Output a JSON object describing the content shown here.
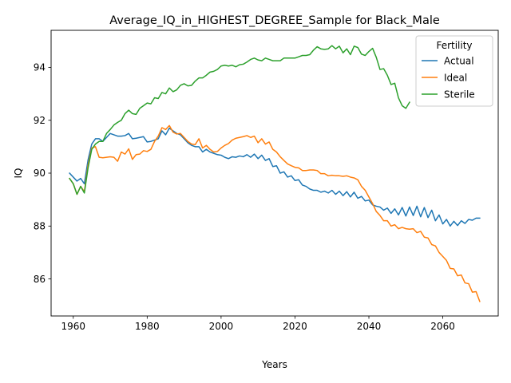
{
  "chart_data": {
    "type": "line",
    "title": "Average_IQ_in_HIGHEST_DEGREE_Sample for Black_Male",
    "xlabel": "Years",
    "ylabel": "IQ",
    "xlim": [
      1954,
      2075
    ],
    "ylim": [
      84.6,
      95.4
    ],
    "xticks": [
      1960,
      1980,
      2000,
      2020,
      2040,
      2060
    ],
    "yticks": [
      86,
      88,
      90,
      92,
      94
    ],
    "grid": false,
    "legend": {
      "title": "Fertility",
      "placement": "top-right"
    },
    "series": [
      {
        "name": "Actual",
        "color": "#1f77b4",
        "x": [
          1959,
          1961,
          1962,
          1963,
          1964,
          1965,
          1966,
          1967,
          1968,
          1969,
          1970,
          1971,
          1972,
          1973,
          1974,
          1975,
          1976,
          1977,
          1978,
          1979,
          1980,
          1981,
          1982,
          1983,
          1984,
          1985,
          1986,
          1987,
          1988,
          1989,
          1990,
          1991,
          1992,
          1993,
          1994,
          1995,
          1996,
          1997,
          1998,
          1999,
          2000,
          2001,
          2002,
          2003,
          2004,
          2005,
          2006,
          2007,
          2008,
          2009,
          2010,
          2011,
          2012,
          2013,
          2014,
          2015,
          2016,
          2017,
          2018,
          2019,
          2020,
          2021,
          2022,
          2023,
          2024,
          2025,
          2026,
          2027,
          2028,
          2029,
          2030,
          2031,
          2032,
          2033,
          2034,
          2035,
          2036,
          2037,
          2038,
          2039,
          2040,
          2041,
          2042,
          2043,
          2044,
          2045,
          2046,
          2047,
          2048,
          2049,
          2050,
          2051,
          2052,
          2053,
          2054,
          2055,
          2056,
          2057,
          2058,
          2059,
          2060,
          2061,
          2062,
          2063,
          2064,
          2065,
          2066,
          2067,
          2068,
          2069,
          2070
        ],
        "values": [
          90.0,
          89.7,
          89.8,
          89.6,
          90.5,
          91.1,
          91.3,
          91.3,
          91.2,
          91.35,
          91.5,
          91.45,
          91.4,
          91.4,
          91.42,
          91.5,
          91.3,
          91.32,
          91.35,
          91.38,
          91.18,
          91.2,
          91.25,
          91.3,
          91.6,
          91.45,
          91.7,
          91.6,
          91.5,
          91.45,
          91.3,
          91.15,
          91.05,
          91.0,
          91.0,
          90.8,
          90.9,
          90.8,
          90.75,
          90.7,
          90.68,
          90.6,
          90.55,
          90.62,
          90.6,
          90.65,
          90.62,
          90.7,
          90.6,
          90.72,
          90.55,
          90.68,
          90.48,
          90.55,
          90.25,
          90.28,
          90.0,
          90.05,
          89.85,
          89.9,
          89.72,
          89.75,
          89.55,
          89.5,
          89.4,
          89.35,
          89.35,
          89.28,
          89.32,
          89.25,
          89.35,
          89.2,
          89.32,
          89.15,
          89.3,
          89.1,
          89.28,
          89.05,
          89.12,
          88.95,
          88.98,
          88.8,
          88.75,
          88.72,
          88.6,
          88.68,
          88.48,
          88.65,
          88.42,
          88.7,
          88.38,
          88.72,
          88.4,
          88.75,
          88.35,
          88.7,
          88.32,
          88.6,
          88.2,
          88.42,
          88.08,
          88.25,
          88.0,
          88.18,
          88.02,
          88.2,
          88.1,
          88.25,
          88.22,
          88.3,
          88.3
        ]
      },
      {
        "name": "Ideal",
        "color": "#ff7f0e",
        "x": [
          1959,
          1960,
          1961,
          1962,
          1963,
          1964,
          1965,
          1966,
          1967,
          1968,
          1969,
          1970,
          1971,
          1972,
          1973,
          1974,
          1975,
          1976,
          1977,
          1978,
          1979,
          1980,
          1981,
          1982,
          1983,
          1984,
          1985,
          1986,
          1987,
          1988,
          1989,
          1990,
          1991,
          1992,
          1993,
          1994,
          1995,
          1996,
          1997,
          1998,
          1999,
          2000,
          2001,
          2002,
          2003,
          2004,
          2005,
          2006,
          2007,
          2008,
          2009,
          2010,
          2011,
          2012,
          2013,
          2014,
          2015,
          2016,
          2017,
          2018,
          2019,
          2020,
          2021,
          2022,
          2023,
          2024,
          2025,
          2026,
          2027,
          2028,
          2029,
          2030,
          2031,
          2032,
          2033,
          2034,
          2035,
          2036,
          2037,
          2038,
          2039,
          2040,
          2041,
          2042,
          2043,
          2044,
          2045,
          2046,
          2047,
          2048,
          2049,
          2050,
          2051,
          2052,
          2053,
          2054,
          2055,
          2056,
          2057,
          2058,
          2059,
          2060,
          2061,
          2062,
          2063,
          2064,
          2065,
          2066,
          2067,
          2068,
          2069,
          2070
        ],
        "values": [
          89.8,
          89.6,
          89.2,
          89.5,
          89.3,
          90.3,
          90.95,
          91.0,
          90.6,
          90.58,
          90.6,
          90.62,
          90.6,
          90.45,
          90.8,
          90.72,
          90.92,
          90.52,
          90.7,
          90.72,
          90.85,
          90.82,
          90.9,
          91.2,
          91.4,
          91.72,
          91.65,
          91.8,
          91.55,
          91.48,
          91.5,
          91.35,
          91.2,
          91.1,
          91.08,
          91.3,
          90.95,
          91.05,
          90.9,
          90.8,
          90.82,
          90.95,
          91.05,
          91.12,
          91.25,
          91.32,
          91.35,
          91.38,
          91.42,
          91.35,
          91.4,
          91.15,
          91.3,
          91.1,
          91.18,
          90.9,
          90.8,
          90.62,
          90.48,
          90.35,
          90.28,
          90.22,
          90.2,
          90.1,
          90.1,
          90.12,
          90.12,
          90.1,
          89.98,
          89.98,
          89.9,
          89.92,
          89.9,
          89.9,
          89.88,
          89.9,
          89.85,
          89.82,
          89.75,
          89.5,
          89.35,
          89.1,
          88.85,
          88.55,
          88.4,
          88.2,
          88.2,
          88.0,
          88.05,
          87.9,
          87.95,
          87.9,
          87.88,
          87.9,
          87.75,
          87.8,
          87.58,
          87.55,
          87.3,
          87.25,
          87.0,
          86.85,
          86.7,
          86.4,
          86.38,
          86.12,
          86.15,
          85.85,
          85.82,
          85.5,
          85.52,
          85.15
        ]
      },
      {
        "name": "Sterile",
        "color": "#2ca02c",
        "x": [
          1959,
          1960,
          1961,
          1962,
          1963,
          1964,
          1965,
          1966,
          1967,
          1968,
          1969,
          1970,
          1971,
          1972,
          1973,
          1974,
          1975,
          1976,
          1977,
          1978,
          1979,
          1980,
          1981,
          1982,
          1983,
          1984,
          1985,
          1986,
          1987,
          1988,
          1989,
          1990,
          1991,
          1992,
          1993,
          1994,
          1995,
          1996,
          1997,
          1998,
          1999,
          2000,
          2001,
          2002,
          2003,
          2004,
          2005,
          2006,
          2007,
          2008,
          2009,
          2010,
          2011,
          2012,
          2013,
          2014,
          2015,
          2016,
          2017,
          2018,
          2019,
          2020,
          2021,
          2022,
          2023,
          2024,
          2025,
          2026,
          2027,
          2028,
          2029,
          2030,
          2031,
          2032,
          2033,
          2034,
          2035,
          2036,
          2037,
          2038,
          2039,
          2040,
          2041,
          2042,
          2043,
          2044,
          2045,
          2046,
          2047,
          2048,
          2049,
          2050,
          2051
        ],
        "values": [
          89.8,
          89.6,
          89.2,
          89.5,
          89.25,
          90.2,
          90.9,
          91.1,
          91.2,
          91.2,
          91.5,
          91.65,
          91.82,
          91.92,
          92.0,
          92.25,
          92.38,
          92.25,
          92.22,
          92.45,
          92.55,
          92.65,
          92.62,
          92.85,
          92.82,
          93.05,
          93.0,
          93.22,
          93.08,
          93.15,
          93.32,
          93.38,
          93.3,
          93.32,
          93.48,
          93.6,
          93.6,
          93.7,
          93.82,
          93.85,
          93.92,
          94.05,
          94.08,
          94.05,
          94.08,
          94.02,
          94.1,
          94.12,
          94.2,
          94.3,
          94.35,
          94.28,
          94.25,
          94.35,
          94.3,
          94.25,
          94.25,
          94.25,
          94.35,
          94.35,
          94.35,
          94.35,
          94.4,
          94.45,
          94.45,
          94.48,
          94.65,
          94.78,
          94.7,
          94.68,
          94.7,
          94.82,
          94.7,
          94.8,
          94.55,
          94.7,
          94.48,
          94.8,
          94.75,
          94.5,
          94.45,
          94.6,
          94.72,
          94.38,
          93.92,
          93.95,
          93.7,
          93.35,
          93.4,
          92.85,
          92.55,
          92.45,
          92.68
        ]
      }
    ]
  }
}
